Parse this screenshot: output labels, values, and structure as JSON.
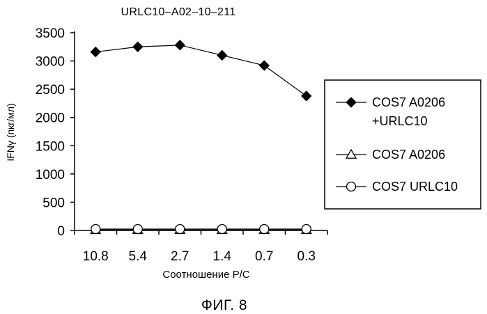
{
  "chart_data": {
    "type": "line",
    "title": "URLC10–A02–10–211",
    "xlabel": "Соотношение P/C",
    "ylabel": "IFNγ (пкг/мл)",
    "categories": [
      "10.8",
      "5.4",
      "2.7",
      "1.4",
      "0.7",
      "0.3"
    ],
    "ylim": [
      0,
      3500
    ],
    "yticks": [
      "0",
      "500",
      "1000",
      "1500",
      "2000",
      "2500",
      "3000",
      "3500"
    ],
    "grid": false,
    "legend_position": "right",
    "series": [
      {
        "name_lines": [
          "COS7 A0206",
          "+URLC10"
        ],
        "marker": "diamond",
        "values": [
          3160,
          3250,
          3280,
          3100,
          2920,
          2380
        ]
      },
      {
        "name_lines": [
          "COS7 A0206"
        ],
        "marker": "triangle",
        "values": [
          10,
          10,
          10,
          10,
          10,
          10
        ]
      },
      {
        "name_lines": [
          "COS7 URLC10"
        ],
        "marker": "circle",
        "values": [
          25,
          25,
          25,
          25,
          25,
          25
        ]
      }
    ]
  },
  "figure_caption": "ФИГ. 8"
}
